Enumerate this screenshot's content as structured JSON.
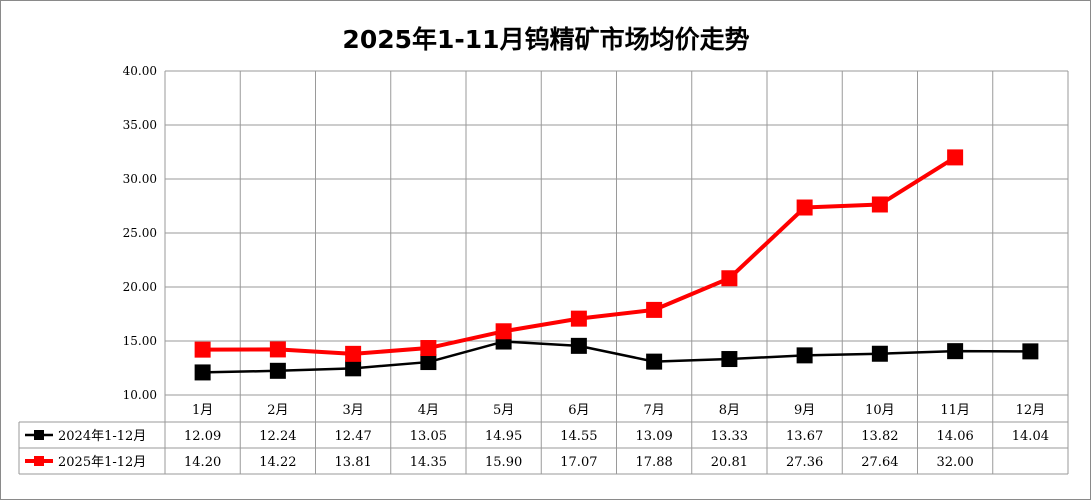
{
  "chart_data": {
    "type": "line",
    "title": "2025年1-11月钨精矿市场均价走势",
    "categories": [
      "1月",
      "2月",
      "3月",
      "4月",
      "5月",
      "6月",
      "7月",
      "8月",
      "9月",
      "10月",
      "11月",
      "12月"
    ],
    "ylim": [
      10,
      40
    ],
    "yticks": [
      "10.00",
      "15.00",
      "20.00",
      "25.00",
      "30.00",
      "35.00",
      "40.00"
    ],
    "grid": true,
    "legend": "data-table-left",
    "series": [
      {
        "name": "2024年1-12月",
        "color": "#000000",
        "values": [
          12.09,
          12.24,
          12.47,
          13.05,
          14.95,
          14.55,
          13.09,
          13.33,
          13.67,
          13.82,
          14.06,
          14.04
        ],
        "labels": [
          "12.09",
          "12.24",
          "12.47",
          "13.05",
          "14.95",
          "14.55",
          "13.09",
          "13.33",
          "13.67",
          "13.82",
          "14.06",
          "14.04"
        ]
      },
      {
        "name": "2025年1-12月",
        "color": "#ff0000",
        "values": [
          14.2,
          14.22,
          13.81,
          14.35,
          15.9,
          17.07,
          17.88,
          20.81,
          27.36,
          27.64,
          32.0,
          null
        ],
        "labels": [
          "14.20",
          "14.22",
          "13.81",
          "14.35",
          "15.90",
          "17.07",
          "17.88",
          "20.81",
          "27.36",
          "27.64",
          "32.00",
          ""
        ]
      }
    ]
  }
}
